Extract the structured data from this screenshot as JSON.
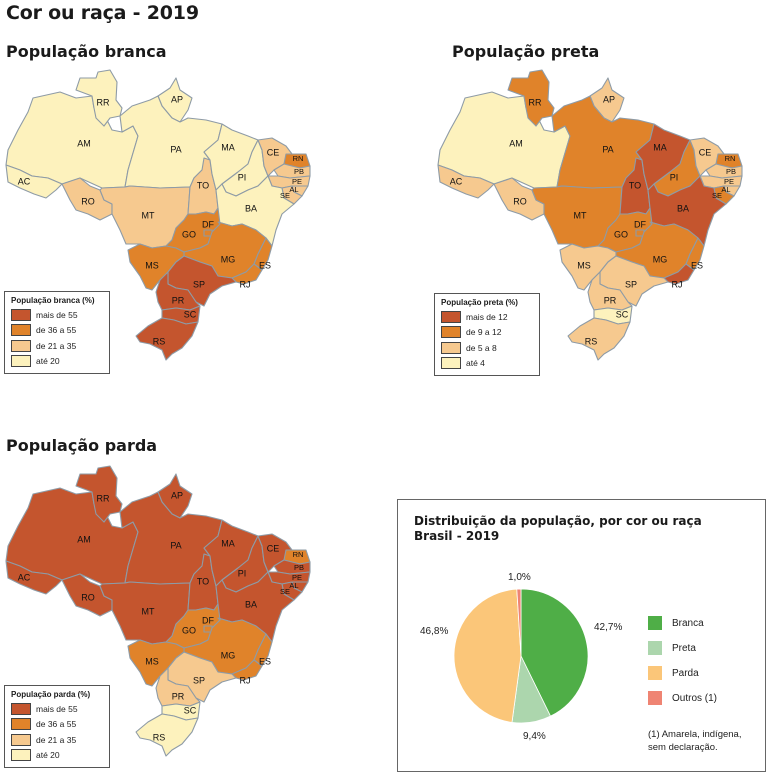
{
  "page": {
    "title": "Cor ou raça - 2019"
  },
  "colors": {
    "c4": "#c4552e",
    "c3": "#e0832a",
    "c2": "#f6c98f",
    "c1": "#fdf2bd"
  },
  "maps": [
    {
      "id": "branca",
      "subtitle": "População branca",
      "legend_title": "População branca (%)",
      "classes": [
        "mais de 55",
        "de 36 a 55",
        "de 21 a 35",
        "até 20"
      ],
      "states": {
        "RR": 1,
        "AP": 1,
        "AM": 1,
        "PA": 1,
        "AC": 1,
        "MA": 1,
        "PI": 1,
        "CE": 2,
        "RN": 3,
        "PB": 2,
        "PE": 2,
        "AL": 2,
        "SE": 2,
        "BA": 1,
        "TO": 2,
        "RO": 2,
        "MT": 2,
        "GO": 3,
        "DF": 3,
        "MS": 3,
        "MG": 3,
        "ES": 3,
        "RJ": 3,
        "SP": 4,
        "PR": 4,
        "SC": 4,
        "RS": 4
      }
    },
    {
      "id": "preta",
      "subtitle": "População preta",
      "legend_title": "População preta (%)",
      "classes": [
        "mais de 12",
        "de 9 a 12",
        "de 5 a 8",
        "até 4"
      ],
      "states": {
        "RR": 3,
        "AP": 2,
        "AM": 1,
        "PA": 3,
        "AC": 2,
        "MA": 4,
        "PI": 3,
        "CE": 2,
        "RN": 3,
        "PB": 2,
        "PE": 2,
        "AL": 2,
        "SE": 3,
        "BA": 4,
        "TO": 4,
        "RO": 2,
        "MT": 3,
        "GO": 3,
        "DF": 3,
        "MS": 2,
        "MG": 3,
        "ES": 3,
        "RJ": 4,
        "SP": 2,
        "PR": 2,
        "SC": 1,
        "RS": 2
      }
    },
    {
      "id": "parda",
      "subtitle": "População parda",
      "legend_title": "População parda (%)",
      "classes": [
        "mais de 55",
        "de 36 a 55",
        "de 21 a 35",
        "até 20"
      ],
      "states": {
        "RR": 4,
        "AP": 4,
        "AM": 4,
        "PA": 4,
        "AC": 4,
        "MA": 4,
        "PI": 4,
        "CE": 4,
        "RN": 3,
        "PB": 4,
        "PE": 4,
        "AL": 4,
        "SE": 4,
        "BA": 4,
        "TO": 4,
        "RO": 4,
        "MT": 4,
        "GO": 3,
        "DF": 3,
        "MS": 3,
        "MG": 3,
        "ES": 3,
        "RJ": 3,
        "SP": 2,
        "PR": 2,
        "SC": 1,
        "RS": 1
      }
    }
  ],
  "pie": {
    "title_line1": "Distribuição da população, por cor ou raça",
    "title_line2": "Brasil - 2019",
    "note": "(1) Amarela, indígena, sem declaração."
  },
  "chart_data": {
    "type": "pie",
    "title": "Distribuição da população, por cor ou raça Brasil - 2019",
    "categories": [
      "Branca",
      "Preta",
      "Parda",
      "Outros (1)"
    ],
    "values": [
      42.7,
      9.4,
      46.8,
      1.0
    ],
    "value_labels": [
      "42,7%",
      "9,4%",
      "46,8%",
      "1,0%"
    ],
    "colors": [
      "#4fae47",
      "#acd6ad",
      "#fbc679",
      "#ef8473"
    ],
    "legend_position": "right",
    "footnote": "(1) Amarela, indígena, sem declaração."
  }
}
